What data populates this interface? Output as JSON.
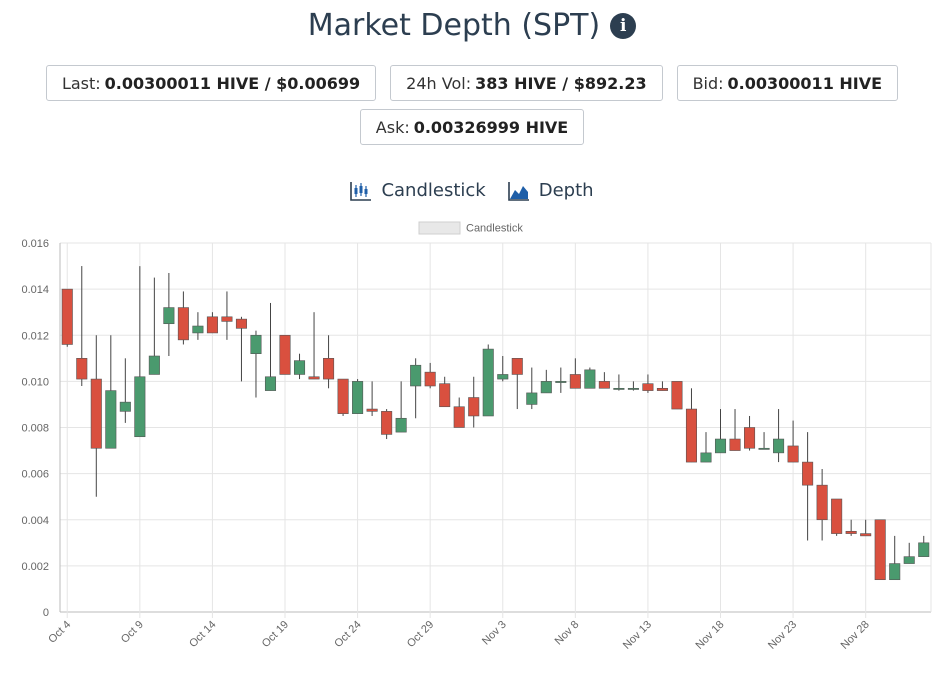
{
  "header": {
    "title": "Market Depth (SPT)",
    "info_icon": "info-icon"
  },
  "stats": {
    "last_label": "Last:",
    "last_value": "0.00300011 HIVE / $0.00699",
    "vol_label": "24h Vol:",
    "vol_value": "383 HIVE / $892.23",
    "bid_label": "Bid:",
    "bid_value": "0.00300011 HIVE",
    "ask_label": "Ask:",
    "ask_value": "0.00326999 HIVE"
  },
  "tabs": [
    {
      "label": "Candlestick",
      "icon": "candlestick-icon"
    },
    {
      "label": "Depth",
      "icon": "depth-icon"
    }
  ],
  "colors": {
    "up": "#4a9a6e",
    "down": "#d9503f",
    "wick": "#444444",
    "grid": "#e5e5e5",
    "text": "#2c3e50"
  },
  "chart_data": {
    "type": "candlestick",
    "legend": [
      "Candlestick"
    ],
    "ylim": [
      0,
      0.016
    ],
    "y_ticks": [
      "0",
      "0.002",
      "0.004",
      "0.006",
      "0.008",
      "0.010",
      "0.012",
      "0.014",
      "0.016"
    ],
    "x_tick_labels": [
      "Oct 4",
      "Oct 9",
      "Oct 14",
      "Oct 19",
      "Oct 24",
      "Oct 29",
      "Nov 3",
      "Nov 8",
      "Nov 13",
      "Nov 18",
      "Nov 23",
      "Nov 28"
    ],
    "candles": [
      {
        "date": "Oct 4",
        "open": 0.014,
        "high": 0.014,
        "low": 0.0115,
        "close": 0.0116
      },
      {
        "date": "Oct 5",
        "open": 0.011,
        "high": 0.015,
        "low": 0.0098,
        "close": 0.0101
      },
      {
        "date": "Oct 6",
        "open": 0.0101,
        "high": 0.012,
        "low": 0.005,
        "close": 0.0071
      },
      {
        "date": "Oct 7",
        "open": 0.0071,
        "high": 0.012,
        "low": 0.0071,
        "close": 0.0096
      },
      {
        "date": "Oct 8",
        "open": 0.0087,
        "high": 0.011,
        "low": 0.0082,
        "close": 0.0091
      },
      {
        "date": "Oct 9",
        "open": 0.0076,
        "high": 0.015,
        "low": 0.0076,
        "close": 0.0102
      },
      {
        "date": "Oct 10",
        "open": 0.0103,
        "high": 0.0145,
        "low": 0.0103,
        "close": 0.0111
      },
      {
        "date": "Oct 11",
        "open": 0.0125,
        "high": 0.0147,
        "low": 0.0111,
        "close": 0.0132
      },
      {
        "date": "Oct 12",
        "open": 0.0132,
        "high": 0.0139,
        "low": 0.0116,
        "close": 0.0118
      },
      {
        "date": "Oct 13",
        "open": 0.0121,
        "high": 0.013,
        "low": 0.0118,
        "close": 0.0124
      },
      {
        "date": "Oct 14",
        "open": 0.0128,
        "high": 0.013,
        "low": 0.0121,
        "close": 0.0121
      },
      {
        "date": "Oct 15",
        "open": 0.0128,
        "high": 0.0139,
        "low": 0.0118,
        "close": 0.0126
      },
      {
        "date": "Oct 16",
        "open": 0.0127,
        "high": 0.0128,
        "low": 0.01,
        "close": 0.0123
      },
      {
        "date": "Oct 17",
        "open": 0.0112,
        "high": 0.0122,
        "low": 0.0093,
        "close": 0.012
      },
      {
        "date": "Oct 18",
        "open": 0.0096,
        "high": 0.0134,
        "low": 0.0096,
        "close": 0.0102
      },
      {
        "date": "Oct 19",
        "open": 0.012,
        "high": 0.012,
        "low": 0.0103,
        "close": 0.0103
      },
      {
        "date": "Oct 20",
        "open": 0.0103,
        "high": 0.0112,
        "low": 0.0101,
        "close": 0.0109
      },
      {
        "date": "Oct 21",
        "open": 0.0102,
        "high": 0.013,
        "low": 0.0101,
        "close": 0.0101
      },
      {
        "date": "Oct 22",
        "open": 0.011,
        "high": 0.012,
        "low": 0.0097,
        "close": 0.0101
      },
      {
        "date": "Oct 23",
        "open": 0.0101,
        "high": 0.0101,
        "low": 0.0085,
        "close": 0.0086
      },
      {
        "date": "Oct 24",
        "open": 0.0086,
        "high": 0.0101,
        "low": 0.0086,
        "close": 0.01
      },
      {
        "date": "Oct 25",
        "open": 0.0088,
        "high": 0.01,
        "low": 0.0085,
        "close": 0.0087
      },
      {
        "date": "Oct 26",
        "open": 0.0087,
        "high": 0.0088,
        "low": 0.0075,
        "close": 0.0077
      },
      {
        "date": "Oct 27",
        "open": 0.0078,
        "high": 0.01,
        "low": 0.0078,
        "close": 0.0084
      },
      {
        "date": "Oct 28",
        "open": 0.0098,
        "high": 0.011,
        "low": 0.0084,
        "close": 0.0107
      },
      {
        "date": "Oct 29",
        "open": 0.0104,
        "high": 0.0108,
        "low": 0.0097,
        "close": 0.0098
      },
      {
        "date": "Oct 30",
        "open": 0.0099,
        "high": 0.0102,
        "low": 0.0089,
        "close": 0.0089
      },
      {
        "date": "Oct 31",
        "open": 0.0089,
        "high": 0.0093,
        "low": 0.008,
        "close": 0.008
      },
      {
        "date": "Nov 1",
        "open": 0.0093,
        "high": 0.0102,
        "low": 0.008,
        "close": 0.0085
      },
      {
        "date": "Nov 2",
        "open": 0.0085,
        "high": 0.0116,
        "low": 0.0085,
        "close": 0.0114
      },
      {
        "date": "Nov 3",
        "open": 0.0101,
        "high": 0.0111,
        "low": 0.01,
        "close": 0.0103
      },
      {
        "date": "Nov 4",
        "open": 0.011,
        "high": 0.011,
        "low": 0.0088,
        "close": 0.0103
      },
      {
        "date": "Nov 5",
        "open": 0.009,
        "high": 0.0106,
        "low": 0.0088,
        "close": 0.0095
      },
      {
        "date": "Nov 6",
        "open": 0.0095,
        "high": 0.0105,
        "low": 0.0095,
        "close": 0.01
      },
      {
        "date": "Nov 7",
        "open": 0.01,
        "high": 0.0106,
        "low": 0.0095,
        "close": 0.01
      },
      {
        "date": "Nov 8",
        "open": 0.0103,
        "high": 0.011,
        "low": 0.0097,
        "close": 0.0097
      },
      {
        "date": "Nov 9",
        "open": 0.0097,
        "high": 0.0106,
        "low": 0.0097,
        "close": 0.0105
      },
      {
        "date": "Nov 10",
        "open": 0.01,
        "high": 0.0104,
        "low": 0.0097,
        "close": 0.0097
      },
      {
        "date": "Nov 11",
        "open": 0.0097,
        "high": 0.0103,
        "low": 0.0096,
        "close": 0.0097
      },
      {
        "date": "Nov 12",
        "open": 0.0097,
        "high": 0.01,
        "low": 0.0096,
        "close": 0.0097
      },
      {
        "date": "Nov 13",
        "open": 0.0099,
        "high": 0.0103,
        "low": 0.0095,
        "close": 0.0096
      },
      {
        "date": "Nov 14",
        "open": 0.0097,
        "high": 0.01,
        "low": 0.0096,
        "close": 0.0096
      },
      {
        "date": "Nov 15",
        "open": 0.01,
        "high": 0.01,
        "low": 0.0088,
        "close": 0.0088
      },
      {
        "date": "Nov 16",
        "open": 0.0088,
        "high": 0.0097,
        "low": 0.0065,
        "close": 0.0065
      },
      {
        "date": "Nov 17",
        "open": 0.0065,
        "high": 0.0078,
        "low": 0.0065,
        "close": 0.0069
      },
      {
        "date": "Nov 18",
        "open": 0.0069,
        "high": 0.0088,
        "low": 0.0069,
        "close": 0.0075
      },
      {
        "date": "Nov 19",
        "open": 0.0075,
        "high": 0.0088,
        "low": 0.007,
        "close": 0.007
      },
      {
        "date": "Nov 20",
        "open": 0.008,
        "high": 0.0085,
        "low": 0.007,
        "close": 0.0071
      },
      {
        "date": "Nov 21",
        "open": 0.0071,
        "high": 0.0078,
        "low": 0.0071,
        "close": 0.0071
      },
      {
        "date": "Nov 22",
        "open": 0.0069,
        "high": 0.0088,
        "low": 0.0065,
        "close": 0.0075
      },
      {
        "date": "Nov 23",
        "open": 0.0072,
        "high": 0.0083,
        "low": 0.0065,
        "close": 0.0065
      },
      {
        "date": "Nov 24",
        "open": 0.0065,
        "high": 0.0078,
        "low": 0.0031,
        "close": 0.0055
      },
      {
        "date": "Nov 25",
        "open": 0.0055,
        "high": 0.0062,
        "low": 0.0031,
        "close": 0.004
      },
      {
        "date": "Nov 26",
        "open": 0.0049,
        "high": 0.0049,
        "low": 0.0033,
        "close": 0.0034
      },
      {
        "date": "Nov 27",
        "open": 0.0035,
        "high": 0.004,
        "low": 0.0033,
        "close": 0.0034
      },
      {
        "date": "Nov 28",
        "open": 0.0034,
        "high": 0.004,
        "low": 0.0033,
        "close": 0.0033
      },
      {
        "date": "Nov 29",
        "open": 0.004,
        "high": 0.004,
        "low": 0.0014,
        "close": 0.0014
      },
      {
        "date": "Nov 30",
        "open": 0.0014,
        "high": 0.0033,
        "low": 0.0014,
        "close": 0.0021
      },
      {
        "date": "Dec 1",
        "open": 0.0021,
        "high": 0.003,
        "low": 0.0021,
        "close": 0.0024
      },
      {
        "date": "Dec 2",
        "open": 0.0024,
        "high": 0.0033,
        "low": 0.0024,
        "close": 0.003
      }
    ]
  }
}
